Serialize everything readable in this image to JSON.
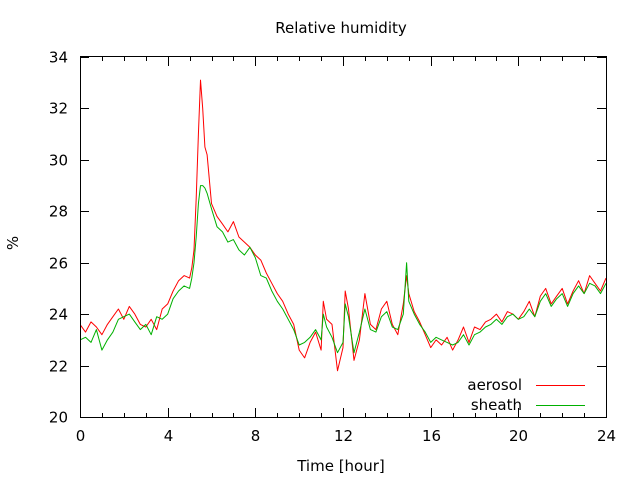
{
  "chart_data": {
    "type": "line",
    "title": "Relative humidity",
    "xlabel": "Time [hour]",
    "ylabel": "%",
    "xlim": [
      0,
      24
    ],
    "ylim": [
      20,
      34
    ],
    "xticks": [
      0,
      4,
      8,
      12,
      16,
      20,
      24
    ],
    "yticks": [
      20,
      22,
      24,
      26,
      28,
      30,
      32,
      34
    ],
    "grid": false,
    "legend": "bottom-right",
    "series": [
      {
        "name": "aerosol",
        "color": "#ff0000",
        "x": [
          0,
          0.25,
          0.5,
          0.75,
          1,
          1.25,
          1.5,
          1.75,
          2,
          2.25,
          2.5,
          2.75,
          3,
          3.25,
          3.5,
          3.75,
          4,
          4.25,
          4.5,
          4.75,
          5,
          5.1,
          5.2,
          5.3,
          5.4,
          5.5,
          5.6,
          5.7,
          5.8,
          6,
          6.25,
          6.5,
          6.75,
          7,
          7.25,
          7.5,
          7.75,
          8,
          8.25,
          8.5,
          8.75,
          9,
          9.25,
          9.5,
          9.75,
          10,
          10.25,
          10.5,
          10.75,
          11,
          11.1,
          11.25,
          11.5,
          11.75,
          12,
          12.1,
          12.25,
          12.5,
          12.75,
          13,
          13.25,
          13.5,
          13.75,
          14,
          14.25,
          14.5,
          14.75,
          14.9,
          15,
          15.25,
          15.5,
          15.75,
          16,
          16.25,
          16.5,
          16.75,
          17,
          17.25,
          17.5,
          17.75,
          18,
          18.25,
          18.5,
          18.75,
          19,
          19.25,
          19.5,
          19.75,
          20,
          20.25,
          20.5,
          20.75,
          21,
          21.25,
          21.5,
          21.75,
          22,
          22.25,
          22.5,
          22.75,
          23,
          23.25,
          23.5,
          23.75,
          24
        ],
        "y": [
          23.6,
          23.3,
          23.7,
          23.5,
          23.2,
          23.6,
          23.9,
          24.2,
          23.8,
          24.3,
          24.0,
          23.6,
          23.5,
          23.8,
          23.4,
          24.2,
          24.4,
          24.9,
          25.3,
          25.5,
          25.4,
          25.8,
          26.5,
          28.5,
          31.0,
          33.1,
          32.0,
          30.5,
          30.2,
          28.3,
          27.8,
          27.5,
          27.2,
          27.6,
          27.0,
          26.8,
          26.6,
          26.3,
          26.1,
          25.6,
          25.2,
          24.8,
          24.5,
          24.0,
          23.6,
          22.6,
          22.3,
          22.9,
          23.3,
          22.6,
          24.5,
          23.8,
          23.6,
          21.8,
          22.7,
          24.9,
          24.2,
          22.2,
          23.0,
          24.8,
          23.6,
          23.4,
          24.2,
          24.5,
          23.6,
          23.2,
          24.4,
          25.5,
          24.8,
          24.1,
          23.7,
          23.2,
          22.7,
          23.0,
          22.8,
          23.1,
          22.6,
          23.0,
          23.5,
          22.9,
          23.5,
          23.4,
          23.7,
          23.8,
          24.0,
          23.7,
          24.1,
          24.0,
          23.8,
          24.1,
          24.5,
          23.9,
          24.7,
          25.0,
          24.4,
          24.7,
          25.0,
          24.4,
          24.9,
          25.3,
          24.8,
          25.5,
          25.2,
          24.9,
          25.4
        ]
      },
      {
        "name": "sheath",
        "color": "#00b000",
        "x": [
          0,
          0.25,
          0.5,
          0.75,
          1,
          1.25,
          1.5,
          1.75,
          2,
          2.25,
          2.5,
          2.75,
          3,
          3.25,
          3.5,
          3.75,
          4,
          4.25,
          4.5,
          4.75,
          5,
          5.1,
          5.2,
          5.3,
          5.4,
          5.5,
          5.6,
          5.7,
          5.8,
          6,
          6.25,
          6.5,
          6.75,
          7,
          7.25,
          7.5,
          7.75,
          8,
          8.25,
          8.5,
          8.75,
          9,
          9.25,
          9.5,
          9.75,
          10,
          10.25,
          10.5,
          10.75,
          11,
          11.1,
          11.25,
          11.5,
          11.75,
          12,
          12.1,
          12.25,
          12.5,
          12.75,
          13,
          13.25,
          13.5,
          13.75,
          14,
          14.25,
          14.5,
          14.75,
          14.9,
          15,
          15.25,
          15.5,
          15.75,
          16,
          16.25,
          16.5,
          16.75,
          17,
          17.25,
          17.5,
          17.75,
          18,
          18.25,
          18.5,
          18.75,
          19,
          19.25,
          19.5,
          19.75,
          20,
          20.25,
          20.5,
          20.75,
          21,
          21.25,
          21.5,
          21.75,
          22,
          22.25,
          22.5,
          22.75,
          23,
          23.25,
          23.5,
          23.75,
          24
        ],
        "y": [
          23.0,
          23.1,
          22.9,
          23.4,
          22.6,
          23.0,
          23.3,
          23.8,
          23.9,
          24.0,
          23.7,
          23.4,
          23.6,
          23.2,
          23.9,
          23.8,
          24.0,
          24.6,
          24.9,
          25.1,
          25.0,
          25.4,
          26.0,
          27.0,
          28.3,
          29.0,
          29.0,
          28.9,
          28.7,
          28.1,
          27.4,
          27.2,
          26.8,
          26.9,
          26.5,
          26.3,
          26.6,
          26.2,
          25.5,
          25.4,
          24.9,
          24.5,
          24.2,
          23.8,
          23.4,
          22.8,
          22.9,
          23.1,
          23.4,
          23.0,
          24.0,
          23.5,
          23.1,
          22.5,
          22.9,
          24.4,
          23.9,
          22.5,
          23.3,
          24.2,
          23.4,
          23.3,
          23.9,
          24.1,
          23.5,
          23.4,
          24.0,
          26.0,
          24.5,
          24.0,
          23.6,
          23.3,
          22.9,
          23.1,
          23.0,
          22.9,
          22.8,
          22.9,
          23.2,
          22.8,
          23.2,
          23.3,
          23.5,
          23.6,
          23.8,
          23.6,
          23.9,
          24.0,
          23.8,
          23.9,
          24.2,
          23.9,
          24.5,
          24.8,
          24.3,
          24.6,
          24.8,
          24.3,
          24.8,
          25.1,
          24.8,
          25.2,
          25.1,
          24.8,
          25.2
        ]
      }
    ]
  }
}
